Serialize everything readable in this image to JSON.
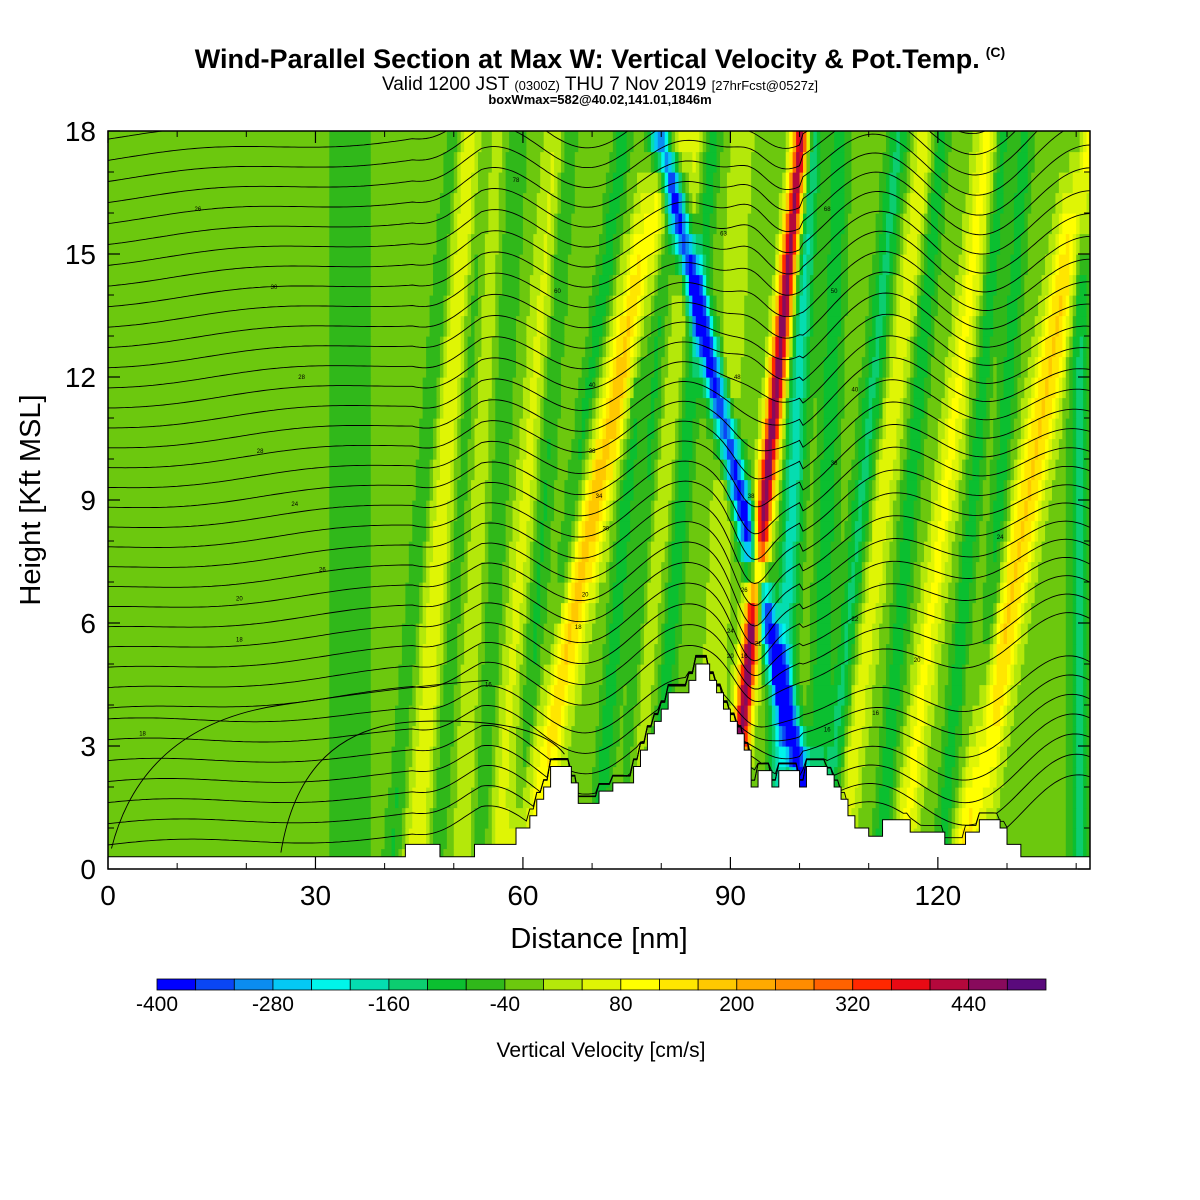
{
  "header": {
    "title": "Wind-Parallel Section at Max W: Vertical Velocity & Pot.Temp.",
    "title_mark": "(C)",
    "valid_prefix": "Valid 1200 JST",
    "valid_utc": "(0300Z)",
    "valid_date": "THU 7 Nov 2019",
    "forecast": "[27hrFcst@0527z]",
    "box_info": "boxWmax=582@40.02,141.01,1846m"
  },
  "chart_data": {
    "type": "heatmap",
    "xlabel": "Distance [nm]",
    "ylabel": "Height [Kft MSL]",
    "xlim": [
      0,
      142
    ],
    "ylim": [
      0,
      18
    ],
    "xticks": [
      0,
      30,
      60,
      90,
      120
    ],
    "yticks": [
      0,
      3,
      6,
      9,
      12,
      15,
      18
    ],
    "colorbar": {
      "title": "Vertical Velocity [cm/s]",
      "min": -400,
      "max": 520,
      "step": 40,
      "tick_labels": [
        "-400",
        "-280",
        "-160",
        "-40",
        "80",
        "200",
        "320",
        "440"
      ],
      "tick_values": [
        -400,
        -280,
        -160,
        -40,
        80,
        200,
        320,
        440
      ],
      "colors": [
        "#0000ff",
        "#0a46f5",
        "#0b8cf0",
        "#05c8f5",
        "#00f5ea",
        "#05ddb0",
        "#0ccd70",
        "#0bbf30",
        "#30b81a",
        "#6cc80e",
        "#b4e80a",
        "#dff505",
        "#ffff00",
        "#ffe600",
        "#ffc800",
        "#ffaa00",
        "#ff8c00",
        "#ff6200",
        "#ff2800",
        "#e80a14",
        "#b4083c",
        "#880a5c",
        "#5a0a7c"
      ]
    },
    "background_value": -20,
    "updraft_bands": [
      {
        "x": 48.5,
        "w": 1.8,
        "amp": 90,
        "slope": 0.45
      },
      {
        "x": 53.5,
        "w": 1.6,
        "amp": 50,
        "slope": 0.25
      },
      {
        "x": 60.5,
        "w": 1.7,
        "amp": 70,
        "slope": 0.5
      },
      {
        "x": 70.5,
        "w": 2.3,
        "amp": 200,
        "slope": 1.2
      },
      {
        "x": 80,
        "w": 1.6,
        "amp": 60,
        "slope": 0.6
      },
      {
        "x": 89,
        "w": 1.6,
        "amp": 60,
        "slope": 0.3
      },
      {
        "x": 95,
        "w": 1.2,
        "amp": 500,
        "slope": 0.6
      },
      {
        "x": 112,
        "w": 1.6,
        "amp": 90,
        "slope": 0.7
      },
      {
        "x": 121,
        "w": 1.6,
        "amp": 110,
        "slope": 0.7
      },
      {
        "x": 133,
        "w": 2.1,
        "amp": 190,
        "slope": 1.0
      }
    ],
    "downdraft_bands": [
      {
        "x": 35,
        "w": 4.5,
        "amp": 30,
        "slope": 0.0
      },
      {
        "x": 45.5,
        "w": 1.1,
        "amp": 60,
        "slope": 0.5
      },
      {
        "x": 51,
        "w": 1.3,
        "amp": 60,
        "slope": 0.4
      },
      {
        "x": 56.5,
        "w": 1.4,
        "amp": 60,
        "slope": 0.3
      },
      {
        "x": 63,
        "w": 1.3,
        "amp": 70,
        "slope": 0.4
      },
      {
        "x": 67.5,
        "w": 1.4,
        "amp": 80,
        "slope": 0.8
      },
      {
        "x": 75,
        "w": 1.3,
        "amp": 90,
        "slope": 0.5
      },
      {
        "x": 78,
        "w": 1.2,
        "amp": 70,
        "slope": 0.4
      },
      {
        "x": 83,
        "w": 1.3,
        "amp": 90,
        "slope": 0.5
      },
      {
        "x": 91.5,
        "w": 1.5,
        "amp": 380,
        "slope": -1.3
      },
      {
        "x": 99,
        "w": 1.5,
        "amp": 160,
        "slope": 0.3
      },
      {
        "x": 104,
        "w": 1.5,
        "amp": 90,
        "slope": 0.2
      },
      {
        "x": 109,
        "w": 1.5,
        "amp": 110,
        "slope": 0.6
      },
      {
        "x": 116,
        "w": 1.3,
        "amp": 90,
        "slope": 0.5
      },
      {
        "x": 125,
        "w": 1.2,
        "amp": 80,
        "slope": 0.5
      },
      {
        "x": 129,
        "w": 1.3,
        "amp": 80,
        "slope": 0.4
      },
      {
        "x": 140.5,
        "w": 1.5,
        "amp": 110,
        "slope": 0.0
      }
    ],
    "terrain": [
      [
        0,
        0.3
      ],
      [
        43,
        0.3
      ],
      [
        43,
        0.6
      ],
      [
        48,
        0.6
      ],
      [
        48,
        0.3
      ],
      [
        53,
        0.3
      ],
      [
        53,
        0.6
      ],
      [
        59,
        0.6
      ],
      [
        59,
        1.0
      ],
      [
        61,
        1.0
      ],
      [
        61,
        1.3
      ],
      [
        62,
        1.3
      ],
      [
        62,
        1.7
      ],
      [
        63,
        1.7
      ],
      [
        63,
        2.0
      ],
      [
        64,
        2.0
      ],
      [
        64,
        2.5
      ],
      [
        67,
        2.5
      ],
      [
        67,
        2.1
      ],
      [
        68,
        2.1
      ],
      [
        68,
        1.6
      ],
      [
        71,
        1.6
      ],
      [
        71,
        1.9
      ],
      [
        73,
        1.9
      ],
      [
        73,
        2.1
      ],
      [
        76,
        2.1
      ],
      [
        76,
        2.5
      ],
      [
        77,
        2.5
      ],
      [
        77,
        2.9
      ],
      [
        78,
        2.9
      ],
      [
        78,
        3.3
      ],
      [
        79,
        3.3
      ],
      [
        79,
        3.6
      ],
      [
        80,
        3.6
      ],
      [
        80,
        3.9
      ],
      [
        81,
        3.9
      ],
      [
        81,
        4.3
      ],
      [
        84,
        4.3
      ],
      [
        84,
        4.6
      ],
      [
        85,
        4.6
      ],
      [
        85,
        5.0
      ],
      [
        87,
        5.0
      ],
      [
        87,
        4.6
      ],
      [
        88,
        4.6
      ],
      [
        88,
        4.3
      ],
      [
        89,
        4.3
      ],
      [
        89,
        3.9
      ],
      [
        90,
        3.9
      ],
      [
        90,
        3.6
      ],
      [
        91,
        3.6
      ],
      [
        91,
        3.3
      ],
      [
        92,
        3.3
      ],
      [
        92,
        2.9
      ],
      [
        93,
        2.9
      ],
      [
        93,
        2.0
      ],
      [
        94,
        2.0
      ],
      [
        94,
        2.4
      ],
      [
        96,
        2.4
      ],
      [
        96,
        2.0
      ],
      [
        97,
        2.0
      ],
      [
        97,
        2.4
      ],
      [
        100,
        2.4
      ],
      [
        100,
        2.0
      ],
      [
        101,
        2.0
      ],
      [
        101,
        2.5
      ],
      [
        104,
        2.5
      ],
      [
        104,
        2.3
      ],
      [
        105,
        2.3
      ],
      [
        105,
        2.0
      ],
      [
        106,
        2.0
      ],
      [
        106,
        1.7
      ],
      [
        107,
        1.7
      ],
      [
        107,
        1.3
      ],
      [
        108,
        1.3
      ],
      [
        108,
        1.0
      ],
      [
        110,
        1.0
      ],
      [
        110,
        0.8
      ],
      [
        112,
        0.8
      ],
      [
        112,
        1.2
      ],
      [
        116,
        1.2
      ],
      [
        116,
        0.9
      ],
      [
        121,
        0.9
      ],
      [
        121,
        0.6
      ],
      [
        124,
        0.6
      ],
      [
        124,
        0.9
      ],
      [
        126,
        0.9
      ],
      [
        126,
        1.2
      ],
      [
        129,
        1.2
      ],
      [
        129,
        1.0
      ],
      [
        130,
        1.0
      ],
      [
        130,
        0.6
      ],
      [
        132,
        0.6
      ],
      [
        132,
        0.3
      ],
      [
        142,
        0.3
      ]
    ],
    "isentrope_labels": [
      {
        "x": 13,
        "y": 16.1,
        "text": "26"
      },
      {
        "x": 24,
        "y": 14.2,
        "text": "30"
      },
      {
        "x": 28,
        "y": 12.0,
        "text": "28"
      },
      {
        "x": 22,
        "y": 10.2,
        "text": "28"
      },
      {
        "x": 27,
        "y": 8.9,
        "text": "24"
      },
      {
        "x": 31,
        "y": 7.3,
        "text": "26"
      },
      {
        "x": 19,
        "y": 6.6,
        "text": "20"
      },
      {
        "x": 19,
        "y": 5.6,
        "text": "18"
      },
      {
        "x": 55,
        "y": 4.5,
        "text": "16"
      },
      {
        "x": 5,
        "y": 3.3,
        "text": "18"
      },
      {
        "x": 59,
        "y": 16.8,
        "text": "78"
      },
      {
        "x": 65,
        "y": 14.1,
        "text": "60"
      },
      {
        "x": 70,
        "y": 11.8,
        "text": "40"
      },
      {
        "x": 70,
        "y": 10.2,
        "text": "38"
      },
      {
        "x": 71,
        "y": 9.1,
        "text": "34"
      },
      {
        "x": 72,
        "y": 8.3,
        "text": "30"
      },
      {
        "x": 69,
        "y": 6.7,
        "text": "20"
      },
      {
        "x": 68,
        "y": 5.9,
        "text": "18"
      },
      {
        "x": 89,
        "y": 15.5,
        "text": "63"
      },
      {
        "x": 91,
        "y": 12.0,
        "text": "48"
      },
      {
        "x": 93,
        "y": 9.1,
        "text": "38"
      },
      {
        "x": 92,
        "y": 6.8,
        "text": "26"
      },
      {
        "x": 90,
        "y": 5.8,
        "text": "24"
      },
      {
        "x": 90,
        "y": 5.2,
        "text": "20"
      },
      {
        "x": 92,
        "y": 5.2,
        "text": "16"
      },
      {
        "x": 94,
        "y": 5.5,
        "text": "21"
      },
      {
        "x": 104,
        "y": 16.1,
        "text": "68"
      },
      {
        "x": 105,
        "y": 14.1,
        "text": "50"
      },
      {
        "x": 108,
        "y": 11.7,
        "text": "40"
      },
      {
        "x": 105,
        "y": 9.9,
        "text": "38"
      },
      {
        "x": 108,
        "y": 6.1,
        "text": "22"
      },
      {
        "x": 117,
        "y": 5.1,
        "text": "20"
      },
      {
        "x": 111,
        "y": 3.8,
        "text": "16"
      },
      {
        "x": 104,
        "y": 3.4,
        "text": "16"
      },
      {
        "x": 129,
        "y": 8.1,
        "text": "24"
      }
    ]
  }
}
